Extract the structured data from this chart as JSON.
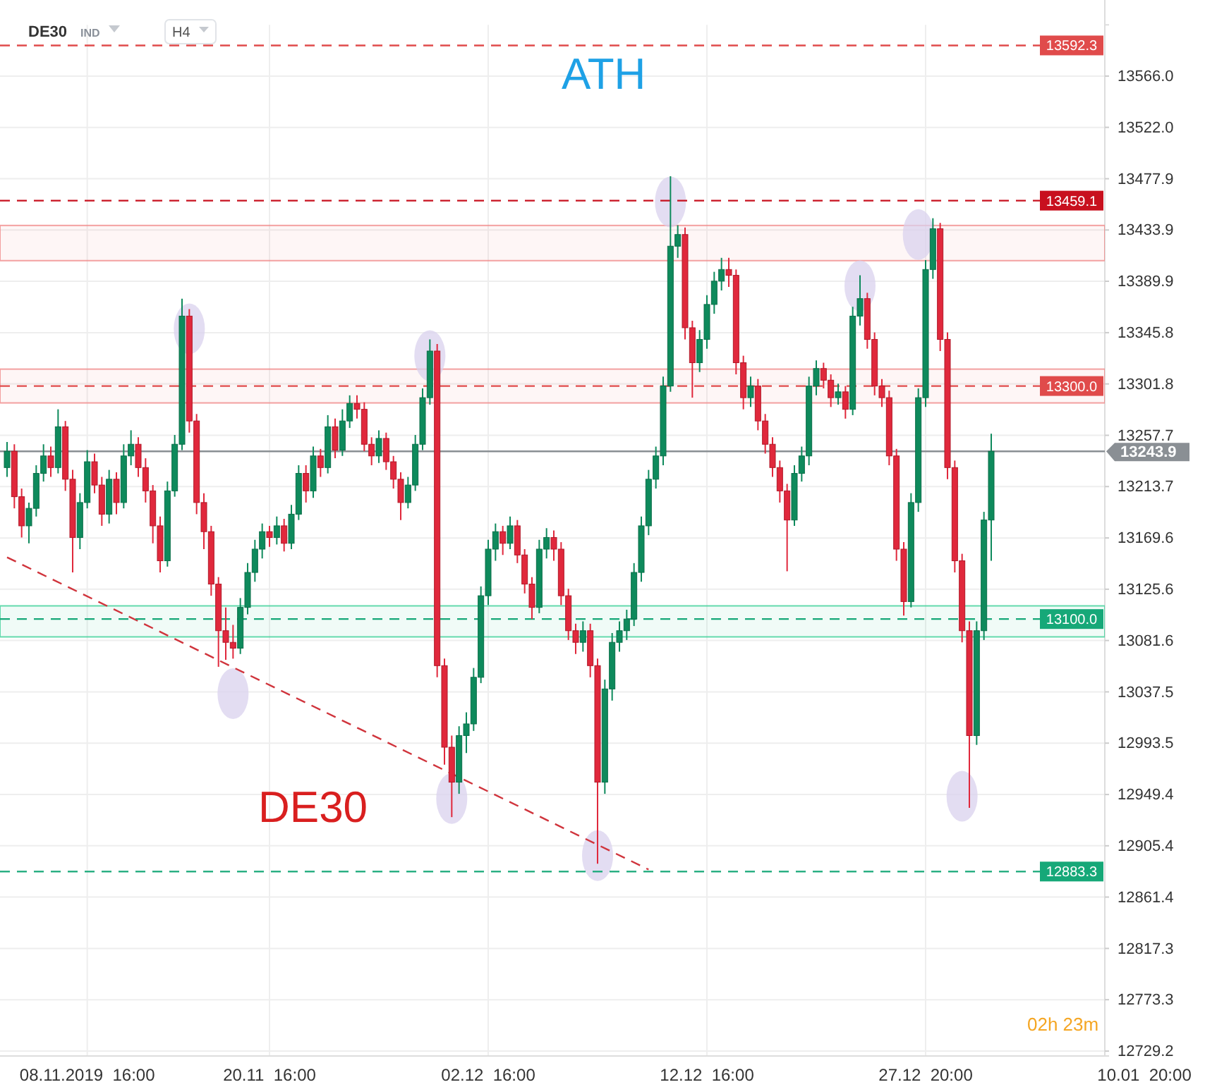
{
  "chart_data": {
    "type": "candlestick",
    "title": "DE30",
    "categories": [
      null,
      null,
      null,
      null,
      null,
      null,
      null,
      null,
      null,
      null,
      null,
      "08.11.2019  16:00",
      null,
      null,
      null,
      null,
      null,
      null,
      null,
      null,
      null,
      null,
      null,
      null,
      null,
      null,
      null,
      null,
      null,
      null,
      null,
      null,
      null,
      null,
      null,
      null,
      "20.11  16:00",
      null,
      null,
      null,
      null,
      null,
      null,
      null,
      null,
      null,
      null,
      null,
      null,
      null,
      null,
      null,
      null,
      null,
      null,
      null,
      null,
      null,
      null,
      null,
      null,
      null,
      null,
      null,
      null,
      null,
      "02.12  16:00",
      null,
      null,
      null,
      null,
      null,
      null,
      null,
      null,
      null,
      null,
      null,
      null,
      null,
      null,
      null,
      null,
      null,
      null,
      null,
      null,
      null,
      null,
      null,
      null,
      null,
      null,
      null,
      null,
      null,
      "12.12  16:00",
      null,
      null,
      null,
      null,
      null,
      null,
      null,
      null,
      null,
      null,
      null,
      null,
      null,
      null,
      null,
      null,
      null,
      null,
      null,
      null,
      null,
      null,
      null,
      null,
      null,
      null,
      null,
      null,
      null,
      "27.12  20:00",
      null,
      null,
      null,
      null,
      null,
      null,
      null,
      null,
      null,
      null,
      null,
      null,
      null,
      null,
      null,
      null,
      null,
      null,
      null,
      null,
      null,
      null,
      null,
      null,
      null,
      null,
      null,
      null,
      null,
      "10.01  20:00"
    ],
    "ohlc": [
      [
        13230,
        13252,
        13222,
        13244
      ],
      [
        13244,
        13250,
        13195,
        13205
      ],
      [
        13205,
        13212,
        13170,
        13180
      ],
      [
        13180,
        13200,
        13165,
        13195
      ],
      [
        13195,
        13232,
        13188,
        13225
      ],
      [
        13225,
        13250,
        13218,
        13240
      ],
      [
        13240,
        13248,
        13222,
        13230
      ],
      [
        13230,
        13280,
        13225,
        13265
      ],
      [
        13265,
        13270,
        13210,
        13220
      ],
      [
        13220,
        13228,
        13140,
        13170
      ],
      [
        13170,
        13208,
        13160,
        13200
      ],
      [
        13200,
        13245,
        13195,
        13235
      ],
      [
        13235,
        13242,
        13208,
        13215
      ],
      [
        13215,
        13222,
        13180,
        13190
      ],
      [
        13190,
        13228,
        13182,
        13220
      ],
      [
        13220,
        13226,
        13190,
        13200
      ],
      [
        13200,
        13250,
        13195,
        13240
      ],
      [
        13240,
        13262,
        13232,
        13250
      ],
      [
        13250,
        13256,
        13222,
        13230
      ],
      [
        13230,
        13238,
        13200,
        13210
      ],
      [
        13210,
        13215,
        13165,
        13180
      ],
      [
        13180,
        13188,
        13140,
        13150
      ],
      [
        13150,
        13218,
        13145,
        13210
      ],
      [
        13210,
        13258,
        13205,
        13250
      ],
      [
        13250,
        13375,
        13245,
        13360
      ],
      [
        13360,
        13366,
        13260,
        13270
      ],
      [
        13270,
        13276,
        13190,
        13200
      ],
      [
        13200,
        13208,
        13160,
        13175
      ],
      [
        13175,
        13180,
        13120,
        13130
      ],
      [
        13130,
        13136,
        13059,
        13090
      ],
      [
        13090,
        13110,
        13065,
        13080
      ],
      [
        13080,
        13095,
        13066,
        13075
      ],
      [
        13075,
        13118,
        13070,
        13110
      ],
      [
        13110,
        13148,
        13104,
        13140
      ],
      [
        13140,
        13168,
        13132,
        13160
      ],
      [
        13160,
        13182,
        13152,
        13175
      ],
      [
        13175,
        13180,
        13162,
        13170
      ],
      [
        13170,
        13188,
        13164,
        13180
      ],
      [
        13180,
        13186,
        13158,
        13165
      ],
      [
        13165,
        13198,
        13160,
        13190
      ],
      [
        13190,
        13232,
        13185,
        13225
      ],
      [
        13225,
        13232,
        13200,
        13210
      ],
      [
        13210,
        13248,
        13204,
        13240
      ],
      [
        13240,
        13246,
        13222,
        13230
      ],
      [
        13230,
        13275,
        13225,
        13265
      ],
      [
        13265,
        13272,
        13238,
        13245
      ],
      [
        13245,
        13280,
        13240,
        13270
      ],
      [
        13270,
        13292,
        13264,
        13285
      ],
      [
        13285,
        13292,
        13272,
        13280
      ],
      [
        13280,
        13286,
        13244,
        13250
      ],
      [
        13250,
        13256,
        13232,
        13240
      ],
      [
        13240,
        13262,
        13234,
        13255
      ],
      [
        13255,
        13260,
        13228,
        13235
      ],
      [
        13235,
        13240,
        13212,
        13220
      ],
      [
        13220,
        13226,
        13185,
        13200
      ],
      [
        13200,
        13222,
        13195,
        13215
      ],
      [
        13215,
        13258,
        13210,
        13250
      ],
      [
        13250,
        13298,
        13245,
        13290
      ],
      [
        13290,
        13340,
        13284,
        13330
      ],
      [
        13330,
        13336,
        13050,
        13060
      ],
      [
        13060,
        13066,
        12975,
        12990
      ],
      [
        12990,
        13000,
        12930,
        12960
      ],
      [
        12960,
        13008,
        12950,
        13000
      ],
      [
        13000,
        13020,
        12985,
        13010
      ],
      [
        13010,
        13058,
        13004,
        13050
      ],
      [
        13050,
        13128,
        13045,
        13120
      ],
      [
        13120,
        13168,
        13112,
        13160
      ],
      [
        13160,
        13182,
        13150,
        13175
      ],
      [
        13175,
        13180,
        13155,
        13165
      ],
      [
        13165,
        13188,
        13160,
        13180
      ],
      [
        13180,
        13185,
        13148,
        13155
      ],
      [
        13155,
        13160,
        13122,
        13130
      ],
      [
        13130,
        13136,
        13100,
        13110
      ],
      [
        13110,
        13168,
        13105,
        13160
      ],
      [
        13160,
        13178,
        13152,
        13170
      ],
      [
        13170,
        13176,
        13150,
        13160
      ],
      [
        13160,
        13166,
        13112,
        13120
      ],
      [
        13120,
        13126,
        13082,
        13090
      ],
      [
        13090,
        13096,
        13070,
        13080
      ],
      [
        13080,
        13098,
        13072,
        13090
      ],
      [
        13090,
        13096,
        13050,
        13060
      ],
      [
        13060,
        13066,
        12890,
        12960
      ],
      [
        12960,
        13048,
        12950,
        13040
      ],
      [
        13040,
        13088,
        13030,
        13080
      ],
      [
        13080,
        13098,
        13072,
        13090
      ],
      [
        13090,
        13108,
        13082,
        13100
      ],
      [
        13100,
        13148,
        13094,
        13140
      ],
      [
        13140,
        13188,
        13132,
        13180
      ],
      [
        13180,
        13228,
        13172,
        13220
      ],
      [
        13220,
        13248,
        13212,
        13240
      ],
      [
        13240,
        13308,
        13232,
        13300
      ],
      [
        13300,
        13480,
        13295,
        13420
      ],
      [
        13420,
        13438,
        13410,
        13430
      ],
      [
        13430,
        13436,
        13340,
        13350
      ],
      [
        13350,
        13356,
        13290,
        13320
      ],
      [
        13320,
        13348,
        13312,
        13340
      ],
      [
        13340,
        13378,
        13332,
        13370
      ],
      [
        13370,
        13398,
        13362,
        13390
      ],
      [
        13390,
        13410,
        13382,
        13400
      ],
      [
        13400,
        13410,
        13385,
        13395
      ],
      [
        13395,
        13400,
        13310,
        13320
      ],
      [
        13320,
        13326,
        13280,
        13290
      ],
      [
        13290,
        13308,
        13282,
        13300
      ],
      [
        13300,
        13306,
        13262,
        13270
      ],
      [
        13270,
        13276,
        13242,
        13250
      ],
      [
        13250,
        13256,
        13222,
        13230
      ],
      [
        13230,
        13236,
        13200,
        13210
      ],
      [
        13210,
        13216,
        13141,
        13185
      ],
      [
        13185,
        13232,
        13180,
        13225
      ],
      [
        13225,
        13248,
        13218,
        13240
      ],
      [
        13240,
        13308,
        13232,
        13300
      ],
      [
        13300,
        13322,
        13292,
        13315
      ],
      [
        13315,
        13320,
        13298,
        13305
      ],
      [
        13305,
        13310,
        13282,
        13290
      ],
      [
        13290,
        13302,
        13284,
        13295
      ],
      [
        13295,
        13300,
        13272,
        13280
      ],
      [
        13280,
        13368,
        13275,
        13360
      ],
      [
        13360,
        13395,
        13352,
        13375
      ],
      [
        13375,
        13380,
        13332,
        13340
      ],
      [
        13340,
        13346,
        13292,
        13300
      ],
      [
        13300,
        13306,
        13282,
        13290
      ],
      [
        13290,
        13296,
        13232,
        13240
      ],
      [
        13240,
        13246,
        13150,
        13160
      ],
      [
        13160,
        13166,
        13103,
        13115
      ],
      [
        13115,
        13208,
        13110,
        13200
      ],
      [
        13200,
        13298,
        13192,
        13290
      ],
      [
        13290,
        13408,
        13282,
        13400
      ],
      [
        13400,
        13444,
        13392,
        13435
      ],
      [
        13435,
        13440,
        13330,
        13340
      ],
      [
        13340,
        13346,
        13220,
        13230
      ],
      [
        13230,
        13236,
        13140,
        13150
      ],
      [
        13150,
        13156,
        13080,
        13090
      ],
      [
        13090,
        13098,
        12938,
        13000
      ],
      [
        13000,
        13098,
        12992,
        13090
      ],
      [
        13090,
        13192,
        13082,
        13185
      ],
      [
        13185,
        13259,
        13150,
        13244
      ],
      null,
      null,
      null,
      null,
      null,
      null,
      null,
      null,
      null,
      null,
      null,
      null,
      null,
      null,
      null,
      null,
      null,
      null,
      null,
      null,
      null
    ],
    "series": [
      {
        "type": "scatter",
        "color": "#d9d2ee",
        "values": [
          null,
          null,
          null,
          null,
          null,
          null,
          null,
          null,
          null,
          null,
          null,
          null,
          null,
          null,
          null,
          null,
          null,
          null,
          null,
          null,
          null,
          null,
          null,
          null,
          null,
          13349,
          null,
          null,
          null,
          null,
          null,
          13036,
          null,
          null,
          null,
          null,
          null,
          null,
          null,
          null,
          null,
          null,
          null,
          null,
          null,
          null,
          null,
          null,
          null,
          null,
          null,
          null,
          null,
          null,
          null,
          null,
          null,
          null,
          13326,
          null,
          null,
          12946,
          null,
          null,
          null,
          null,
          null,
          null,
          null,
          null,
          null,
          null,
          null,
          null,
          null,
          null,
          null,
          null,
          null,
          null,
          null,
          12897,
          null,
          null,
          null,
          null,
          null,
          null,
          null,
          null,
          null,
          13458,
          null,
          null,
          null,
          null,
          null,
          null,
          null,
          null,
          null,
          null,
          null,
          null,
          null,
          null,
          null,
          null,
          null,
          null,
          null,
          null,
          null,
          null,
          null,
          null,
          null,
          13386,
          null,
          null,
          null,
          null,
          null,
          null,
          null,
          13430,
          null,
          null,
          null,
          null,
          null,
          12948,
          null,
          null,
          null,
          null,
          null,
          null,
          null,
          null,
          null,
          null,
          null,
          null,
          null,
          null,
          null,
          null,
          null,
          null,
          null,
          null,
          null,
          null,
          null,
          null,
          null
        ]
      },
      {
        "type": "line",
        "color": "#d0343c",
        "line_style": "dashed",
        "values": [
          13153,
          null,
          null,
          null,
          null,
          null,
          null,
          null,
          null,
          null,
          null,
          null,
          null,
          null,
          null,
          null,
          null,
          null,
          null,
          null,
          null,
          null,
          null,
          null,
          null,
          null,
          null,
          null,
          null,
          null,
          null,
          null,
          null,
          null,
          null,
          null,
          null,
          null,
          null,
          null,
          null,
          null,
          null,
          null,
          null,
          null,
          null,
          null,
          null,
          null,
          null,
          null,
          null,
          null,
          null,
          null,
          null,
          null,
          null,
          null,
          null,
          null,
          null,
          null,
          null,
          null,
          null,
          null,
          null,
          null,
          null,
          null,
          null,
          null,
          null,
          null,
          null,
          null,
          null,
          null,
          null,
          null,
          null,
          null,
          null,
          null,
          null,
          null,
          12885,
          null,
          null,
          null,
          null,
          null,
          null,
          null,
          null,
          null,
          null,
          null,
          null,
          null,
          null,
          null,
          null,
          null,
          null,
          null,
          null,
          null,
          null,
          null,
          null,
          null,
          null,
          null,
          null,
          null,
          null,
          null,
          null,
          null,
          null,
          null,
          null,
          null,
          null,
          null,
          null,
          null,
          null,
          null,
          null,
          null,
          null,
          null,
          null,
          null,
          null,
          null,
          null,
          null,
          null,
          null,
          null,
          null,
          null,
          null,
          null,
          null,
          null,
          null,
          null,
          null,
          null,
          null,
          null
        ]
      }
    ],
    "ylim": [
      12725,
      13610
    ],
    "yticks": [
      {
        "value": 13566,
        "label": "13566.0"
      },
      {
        "value": 13522,
        "label": "13522.0"
      },
      13477.9,
      13433.9,
      13389.9,
      13345.8,
      13301.8,
      13257.7,
      13213.7,
      13169.6,
      13125.6,
      13081.6,
      13037.5,
      12993.5,
      12949.4,
      12905.4,
      12861.4,
      12817.3,
      12773.3,
      12729.2
    ],
    "ref_lines": [
      {
        "axis": "y",
        "value": 13592.3,
        "label": "13592.3",
        "color": "#e04b4b",
        "line_style": "dashed"
      },
      {
        "axis": "y",
        "value": 13459.1,
        "label": "13459.1",
        "color": "#c8101e",
        "line_style": "dashed"
      },
      {
        "axis": "y",
        "value": 13300,
        "label": "13300.0",
        "color": "#e04b4b",
        "line_style": "dashed"
      },
      {
        "axis": "y",
        "value": 13100,
        "label": "13100.0",
        "color": "#16a878",
        "line_style": "dashed"
      },
      {
        "axis": "y",
        "value": 12883.3,
        "label": "12883.3",
        "color": "#16a878",
        "line_style": "dashed"
      },
      {
        "axis": "y",
        "value": 13243.9,
        "label": "13243.9",
        "color": "#8a8f94",
        "line_style": "solid"
      }
    ],
    "bands": [
      {
        "axis": "y",
        "from": 13285.5,
        "to": 13314.5,
        "color": "#f08a8a"
      },
      {
        "axis": "y",
        "from": 13407.6,
        "to": 13437.8,
        "color": "#f08a8a"
      },
      {
        "axis": "y",
        "from": 13084.7,
        "to": 13111.3,
        "color": "#3fd19a"
      }
    ],
    "annotations": [
      "IND",
      "H4",
      "ATH",
      "DE30",
      "02h 23m"
    ],
    "grid": true
  }
}
